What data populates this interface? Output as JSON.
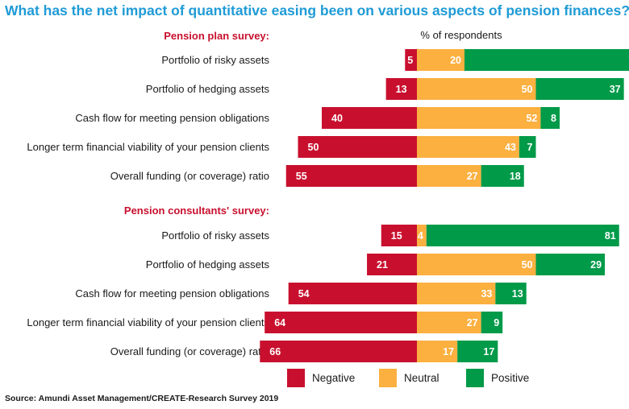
{
  "chart_data": {
    "type": "bar",
    "orientation": "horizontal",
    "stacked": "diverging",
    "title": "What has the net impact of quantitative easing been on various aspects of pension finances?",
    "ylabel": "% of respondents",
    "source": "Source: Amundi Asset Management/CREATE-Research Survey 2019",
    "legend": {
      "placement": "bottom-right",
      "entries": [
        "Negative",
        "Neutral",
        "Positive"
      ]
    },
    "colors": {
      "Negative": "#c8102e",
      "Neutral": "#fbb040",
      "Positive": "#009a49"
    },
    "grid": false,
    "groups": [
      {
        "name": "Pension plan survey:",
        "categories": [
          "Portfolio of risky assets",
          "Portfolio of hedging assets",
          "Cash flow for meeting pension obligations",
          "Longer term financial viability of your pension clients",
          "Overall funding (or coverage) ratio"
        ],
        "series": [
          {
            "name": "Negative",
            "values": [
              5,
              13,
              40,
              50,
              55
            ]
          },
          {
            "name": "Neutral",
            "values": [
              20,
              50,
              52,
              43,
              27
            ]
          },
          {
            "name": "Positive",
            "values": [
              75,
              37,
              8,
              7,
              18
            ]
          }
        ]
      },
      {
        "name": "Pension consultants' survey:",
        "categories": [
          "Portfolio of risky assets",
          "Portfolio of hedging assets",
          "Cash flow for meeting pension obligations",
          "Longer term financial viability of your pension clients",
          "Overall funding (or coverage) ratio"
        ],
        "series": [
          {
            "name": "Negative",
            "values": [
              15,
              21,
              54,
              64,
              66
            ]
          },
          {
            "name": "Neutral",
            "values": [
              4,
              50,
              33,
              27,
              17
            ]
          },
          {
            "name": "Positive",
            "values": [
              81,
              29,
              13,
              9,
              17
            ]
          }
        ]
      }
    ]
  }
}
